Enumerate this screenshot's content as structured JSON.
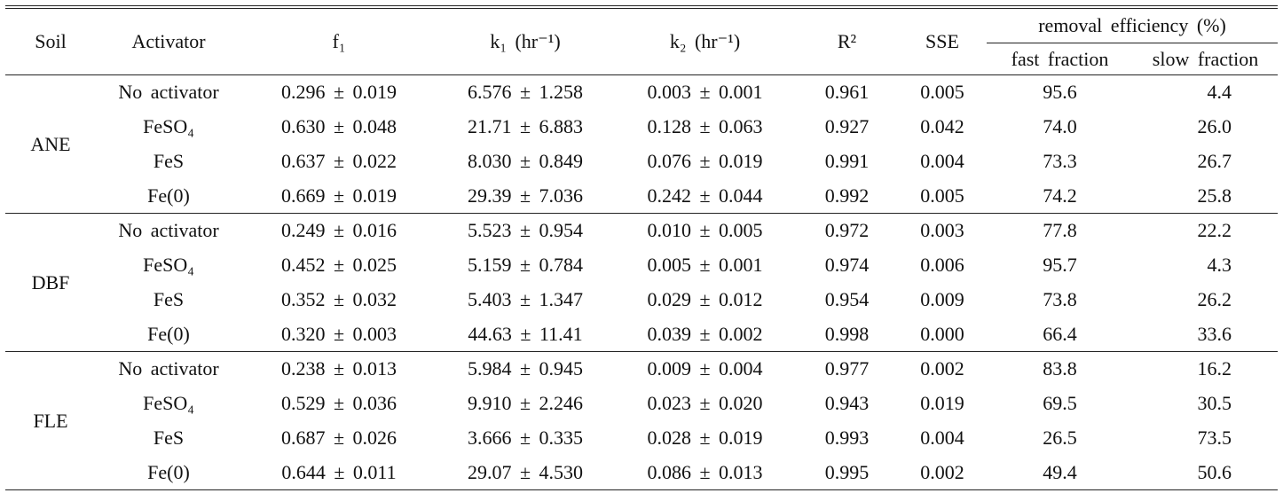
{
  "header": {
    "soil": "Soil",
    "activator": "Activator",
    "f1": "f₁",
    "k1": "k₁ (hr⁻¹)",
    "k2": "k₂ (hr⁻¹)",
    "r2": "R²",
    "sse": "SSE",
    "removal": "removal efficiency (%)",
    "fast": "fast fraction",
    "slow": "slow fraction"
  },
  "groups": [
    {
      "soil": "ANE",
      "rows": [
        [
          "No activator",
          "0.296 ± 0.019",
          "6.576 ± 1.258",
          "0.003 ± 0.001",
          "0.961",
          "0.005",
          "95.6",
          "4.4"
        ],
        [
          "FeSO₄",
          "0.630 ± 0.048",
          "21.71 ± 6.883",
          "0.128 ± 0.063",
          "0.927",
          "0.042",
          "74.0",
          "26.0"
        ],
        [
          "FeS",
          "0.637 ± 0.022",
          "8.030 ± 0.849",
          "0.076 ± 0.019",
          "0.991",
          "0.004",
          "73.3",
          "26.7"
        ],
        [
          "Fe(0)",
          "0.669 ± 0.019",
          "29.39 ± 7.036",
          "0.242 ± 0.044",
          "0.992",
          "0.005",
          "74.2",
          "25.8"
        ]
      ]
    },
    {
      "soil": "DBF",
      "rows": [
        [
          "No activator",
          "0.249 ± 0.016",
          "5.523 ± 0.954",
          "0.010 ± 0.005",
          "0.972",
          "0.003",
          "77.8",
          "22.2"
        ],
        [
          "FeSO₄",
          "0.452 ± 0.025",
          "5.159 ± 0.784",
          "0.005 ± 0.001",
          "0.974",
          "0.006",
          "95.7",
          "4.3"
        ],
        [
          "FeS",
          "0.352 ± 0.032",
          "5.403 ± 1.347",
          "0.029 ± 0.012",
          "0.954",
          "0.009",
          "73.8",
          "26.2"
        ],
        [
          "Fe(0)",
          "0.320 ± 0.003",
          "44.63 ± 11.41",
          "0.039 ± 0.002",
          "0.998",
          "0.000",
          "66.4",
          "33.6"
        ]
      ]
    },
    {
      "soil": "FLE",
      "rows": [
        [
          "No activator",
          "0.238 ± 0.013",
          "5.984 ± 0.945",
          "0.009 ± 0.004",
          "0.977",
          "0.002",
          "83.8",
          "16.2"
        ],
        [
          "FeSO₄",
          "0.529 ± 0.036",
          "9.910 ± 2.246",
          "0.023 ± 0.020",
          "0.943",
          "0.019",
          "69.5",
          "30.5"
        ],
        [
          "FeS",
          "0.687 ± 0.026",
          "3.666 ± 0.335",
          "0.028 ± 0.019",
          "0.993",
          "0.004",
          "26.5",
          "73.5"
        ],
        [
          "Fe(0)",
          "0.644 ± 0.011",
          "29.07 ± 4.530",
          "0.086 ± 0.013",
          "0.995",
          "0.002",
          "49.4",
          "50.6"
        ]
      ]
    }
  ]
}
